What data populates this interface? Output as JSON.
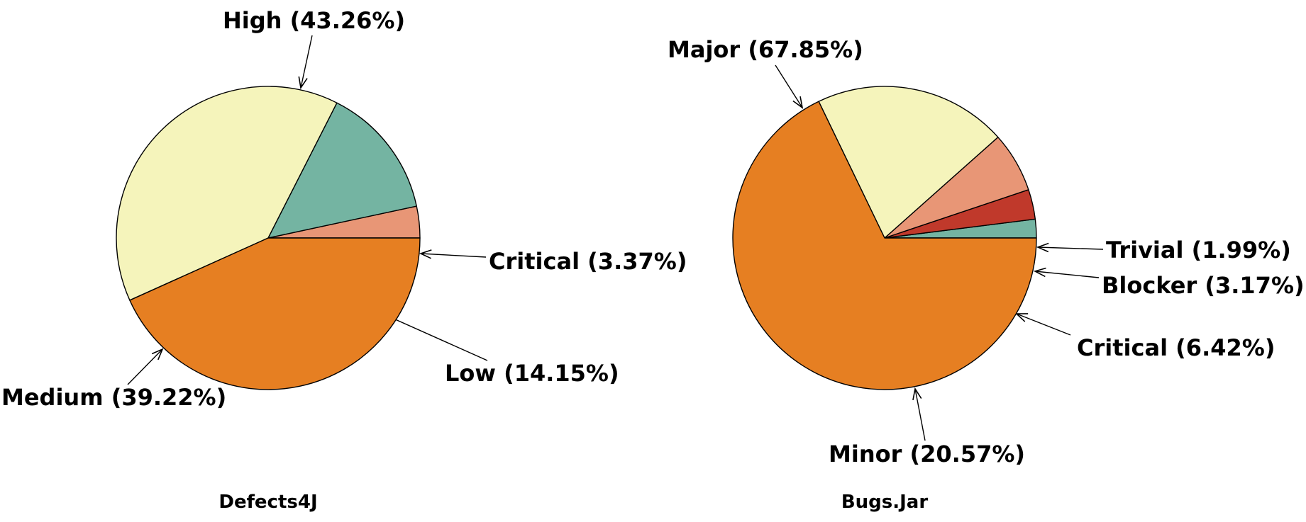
{
  "chart_data": [
    {
      "type": "pie",
      "title": "Defects4J",
      "slices": [
        {
          "label": "Critical",
          "value": 3.37,
          "display": "Critical (3.37%)",
          "color": "#E89676"
        },
        {
          "label": "Low",
          "value": 14.15,
          "display": "Low (14.15%)",
          "color": "#74B4A2"
        },
        {
          "label": "Medium",
          "value": 39.22,
          "display": "Medium (39.22%)",
          "color": "#F5F4BB"
        },
        {
          "label": "High",
          "value": 43.26,
          "display": "High (43.26%)",
          "color": "#E67F22"
        }
      ]
    },
    {
      "type": "pie",
      "title": "Bugs.Jar",
      "slices": [
        {
          "label": "Trivial",
          "value": 1.99,
          "display": "Trivial (1.99%)",
          "color": "#74B4A2"
        },
        {
          "label": "Blocker",
          "value": 3.17,
          "display": "Blocker (3.17%)",
          "color": "#C0392B"
        },
        {
          "label": "Critical",
          "value": 6.42,
          "display": "Critical (6.42%)",
          "color": "#E89676"
        },
        {
          "label": "Minor",
          "value": 20.57,
          "display": "Minor (20.57%)",
          "color": "#F5F4BB"
        },
        {
          "label": "Major",
          "value": 67.85,
          "display": "Major (67.85%)",
          "color": "#E67F22"
        }
      ]
    }
  ]
}
